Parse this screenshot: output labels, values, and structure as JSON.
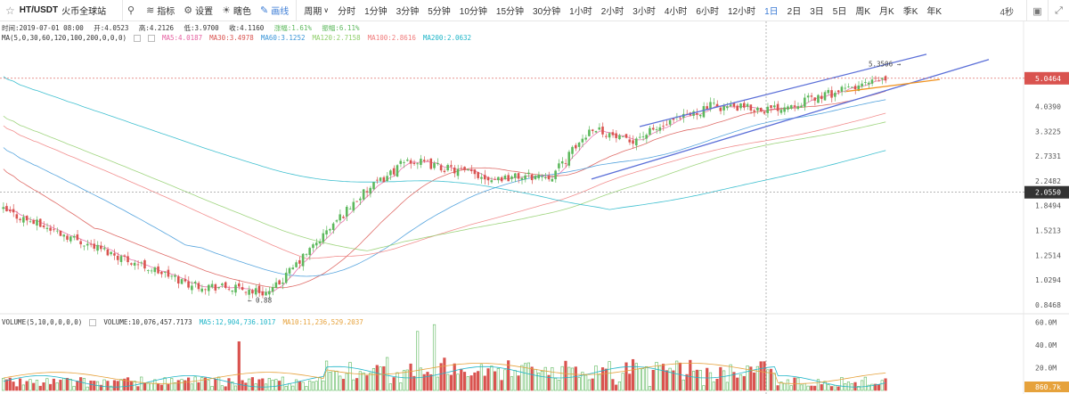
{
  "toolbar": {
    "pair": "HT/USDT",
    "site": "火币全球站",
    "indicators_label": "指标",
    "settings_label": "设置",
    "theme_label": "瞎色",
    "draw_label": "画线",
    "period_label": "周期",
    "intervals": [
      "分时",
      "1分钟",
      "3分钟",
      "5分钟",
      "10分钟",
      "15分钟",
      "30分钟",
      "1小时",
      "2小时",
      "3小时",
      "4小时",
      "6小时",
      "12小时",
      "1日",
      "2日",
      "3日",
      "5日",
      "周K",
      "月K",
      "季K",
      "年K"
    ],
    "active_interval": "1日",
    "countdown": "4秒"
  },
  "ohlc": {
    "time": "时间:2019-07-01 08:00",
    "open": "开:4.0523",
    "high": "高:4.2126",
    "low": "低:3.9700",
    "close": "收:4.1160",
    "change": "涨幅:1.61%",
    "amplitude": "振幅:6.11%"
  },
  "ma_legend": {
    "params": "MA(5,0,30,60,120,100,200,0,0,0)",
    "items": [
      {
        "label": "MA5:4.0187",
        "color": "#e55fa0"
      },
      {
        "label": "MA30:3.4978",
        "color": "#d9534f"
      },
      {
        "label": "MA60:3.1252",
        "color": "#3a95d8"
      },
      {
        "label": "MA120:2.7158",
        "color": "#8fce6a"
      },
      {
        "label": "MA100:2.8616",
        "color": "#f07b7b"
      },
      {
        "label": "MA200:2.0632",
        "color": "#1fb5c8"
      }
    ]
  },
  "volume_legend": {
    "params": "VOLUME(5,10,0,0,0,0)",
    "items": [
      {
        "label": "VOLUME:10,076,457.7173",
        "color": "#333333"
      },
      {
        "label": "MA5:12,904,736.1017",
        "color": "#1fb5c8"
      },
      {
        "label": "MA10:11,236,529.2037",
        "color": "#e6a23c"
      }
    ]
  },
  "chart_data": {
    "type": "candlestick",
    "price_scale": "log",
    "price_ticks": [
      "5.0464",
      "4.0390",
      "3.3225",
      "2.7331",
      "2.2482",
      "1.8494",
      "1.5213",
      "1.2514",
      "1.0294",
      "0.8468"
    ],
    "current_price": "5.0464",
    "crosshair_price": "2.0550",
    "high_label": "5.3506",
    "low_label": "0.88",
    "volume_ticks": [
      "60.0M",
      "40.0M",
      "20.0M"
    ],
    "current_volume": "860.7k",
    "up_color": "#5cb85c",
    "down_color": "#d9534f",
    "ohlc_points": [
      {
        "note": "descending early phase then sideways"
      },
      {
        "start": 1.78,
        "end": 1.0,
        "n": 55
      },
      {
        "start": 1.0,
        "end": 0.93,
        "n": 25
      },
      {
        "start": 0.95,
        "end": 1.95,
        "n": 25
      },
      {
        "start": 1.95,
        "end": 2.65,
        "n": 15
      },
      {
        "start": 2.65,
        "end": 2.3,
        "n": 25
      },
      {
        "start": 2.3,
        "end": 2.35,
        "n": 18
      },
      {
        "start": 2.35,
        "end": 3.45,
        "n": 12
      },
      {
        "start": 3.45,
        "end": 3.05,
        "n": 10
      },
      {
        "start": 3.05,
        "end": 4.05,
        "n": 25
      },
      {
        "start": 4.05,
        "end": 3.95,
        "n": 18
      },
      {
        "start": 3.95,
        "end": 5.05,
        "n": 35
      }
    ]
  }
}
